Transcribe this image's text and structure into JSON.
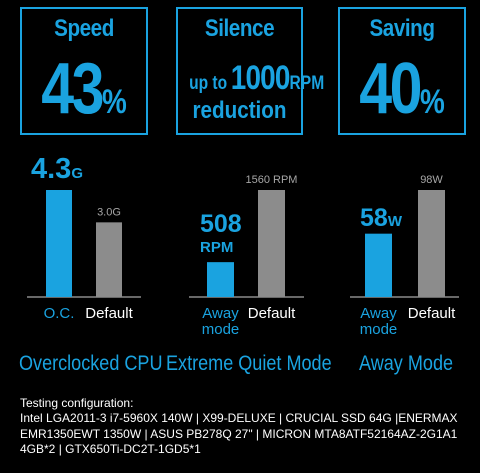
{
  "stats": {
    "speed": {
      "title": "Speed",
      "value": "43",
      "unit": "%"
    },
    "silence": {
      "title": "Silence",
      "prefix": "up to",
      "value": "1000",
      "unit": "RPM",
      "suffix": "reduction"
    },
    "saving": {
      "title": "Saving",
      "value": "40",
      "unit": "%"
    }
  },
  "chart_data": [
    {
      "type": "bar",
      "title": "Overclocked CPU",
      "categories": [
        "O.C.",
        "Default"
      ],
      "values": [
        4.3,
        3.0
      ],
      "value_labels": [
        {
          "num": "4.3",
          "unit": "G"
        },
        {
          "num": "3.0G",
          "unit": ""
        }
      ],
      "ylim": [
        0,
        4.3
      ]
    },
    {
      "type": "bar",
      "title": "Extreme Quiet Mode",
      "categories": [
        "Away mode",
        "Default"
      ],
      "category_lines": [
        [
          "Away",
          "mode"
        ],
        [
          "Default"
        ]
      ],
      "values": [
        508,
        1560
      ],
      "value_labels": [
        {
          "num": "508",
          "unit": "RPM"
        },
        {
          "num": "1560 RPM",
          "unit": ""
        }
      ],
      "ylim": [
        0,
        1560
      ]
    },
    {
      "type": "bar",
      "title": "Away Mode",
      "categories": [
        "Away mode",
        "Default"
      ],
      "category_lines": [
        [
          "Away",
          "mode"
        ],
        [
          "Default"
        ]
      ],
      "values": [
        58,
        98
      ],
      "value_labels": [
        {
          "num": "58",
          "unit": "W"
        },
        {
          "num": "98W",
          "unit": ""
        }
      ],
      "ylim": [
        0,
        98
      ]
    }
  ],
  "testing": {
    "heading": "Testing configuration:",
    "lines": [
      "Intel LGA2011-3 i7-5960X 140W | X99-DELUXE | CRUCIAL SSD 64G |ENERMAX",
      "EMR1350EWT 1350W | ASUS PB278Q 27\" | MICRON MTA8ATF52164AZ-2G1A1",
      "4GB*2 | GTX650Ti-DC2T-1GD5*1"
    ]
  },
  "colors": {
    "accent": "#1aa3e0",
    "default_bar": "#8c8c8c",
    "background": "#000000"
  }
}
